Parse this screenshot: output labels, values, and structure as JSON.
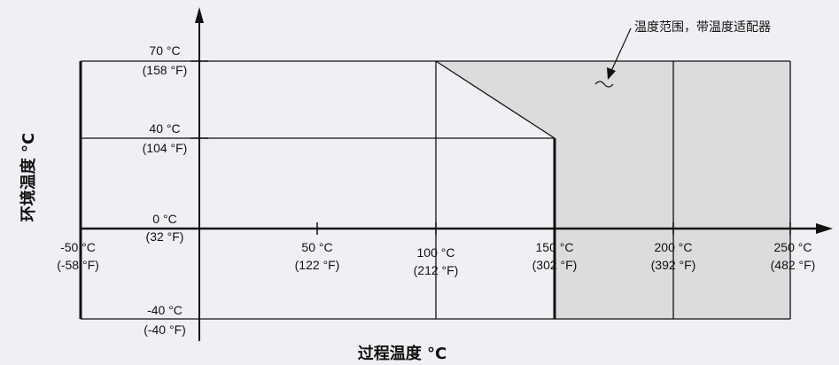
{
  "colors": {
    "background": "#eef0f3",
    "shaded_region": "#dcdcdc",
    "lines": "#111111"
  },
  "annotation": "温度范围，带温度适配器",
  "y_axis_title": "环境温度 °C",
  "x_axis_title": "过程温度 °C",
  "y_ticks": [
    {
      "c": "70 °C",
      "f": "(158 °F)"
    },
    {
      "c": "40 °C",
      "f": "(104 °F)"
    },
    {
      "c": "0 °C",
      "f": "(32 °F)"
    },
    {
      "c": "-40 °C",
      "f": "(-40 °F)"
    }
  ],
  "x_ticks": [
    {
      "c": "-50 °C",
      "f": "(-58 °F)"
    },
    {
      "c": "50 °C",
      "f": "(122 °F)"
    },
    {
      "c": "100 °C",
      "f": "(212 °F)"
    },
    {
      "c": "150 °C",
      "f": "(302 °F)"
    },
    {
      "c": "200 °C",
      "f": "(392 °F)"
    },
    {
      "c": "250 °C",
      "f": "(482 °F)"
    }
  ]
}
